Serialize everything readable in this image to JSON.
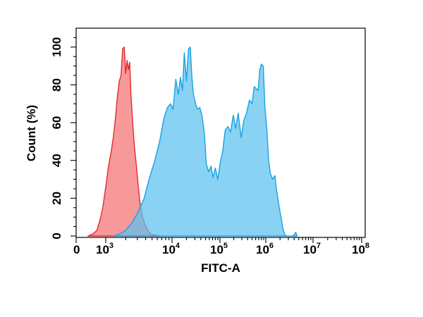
{
  "chart_data": {
    "type": "area",
    "title": "",
    "xlabel": "FITC-A",
    "ylabel": "Count (%)",
    "x_scale": "biexponential",
    "xlim": [
      0,
      100000000
    ],
    "ylim": [
      0,
      110
    ],
    "x_ticks": [
      {
        "value": 0,
        "base": "0",
        "exp": ""
      },
      {
        "value": 1000,
        "base": "10",
        "exp": "3"
      },
      {
        "value": 10000,
        "base": "10",
        "exp": "4"
      },
      {
        "value": 100000,
        "base": "10",
        "exp": "5"
      },
      {
        "value": 1000000,
        "base": "10",
        "exp": "6"
      },
      {
        "value": 10000000,
        "base": "10",
        "exp": "7"
      },
      {
        "value": 100000000,
        "base": "10",
        "exp": "8"
      }
    ],
    "y_ticks": [
      0,
      20,
      40,
      60,
      80,
      100
    ],
    "grid": false,
    "legend": "none",
    "series": [
      {
        "color": "#f47171",
        "stroke": "#e8282c",
        "x": [
          400,
          560,
          700,
          800,
          900,
          1000,
          1100,
          1200,
          1300,
          1400,
          1500,
          1600,
          1700,
          1800,
          1900,
          2000,
          2100,
          2200,
          2300,
          2400,
          2550,
          2700,
          2900,
          3100,
          3300,
          3600,
          3900,
          4300,
          4800,
          5500,
          6500
        ],
        "y": [
          0,
          1,
          3,
          8,
          15,
          26,
          37,
          44,
          52,
          62,
          74,
          82,
          85,
          99,
          100,
          86,
          93,
          88,
          92,
          75,
          60,
          48,
          37,
          26,
          17,
          10,
          6,
          3,
          1,
          0.5,
          0
        ]
      },
      {
        "color": "#5bc1ef",
        "stroke": "#1aa2e2",
        "x": [
          1300,
          1600,
          2000,
          2500,
          3000,
          3800,
          4500,
          5500,
          6500,
          7500,
          8500,
          9500,
          10500,
          12000,
          13500,
          15000,
          16500,
          18000,
          20000,
          22000,
          24000,
          26000,
          28000,
          31000,
          34000,
          38000,
          42000,
          47000,
          52000,
          58000,
          65000,
          72000,
          80000,
          90000,
          100000,
          115000,
          130000,
          150000,
          170000,
          195000,
          220000,
          250000,
          290000,
          330000,
          380000,
          440000,
          500000,
          560000,
          620000,
          680000,
          740000,
          800000,
          880000,
          960000,
          1050000,
          1150000,
          1250000,
          1400000,
          1550000,
          1700000,
          1900000,
          2100000,
          2300000,
          2500000,
          2700000,
          3000000,
          3400000,
          3800000,
          4300000,
          4600000
        ],
        "y": [
          0,
          1,
          3,
          7,
          12,
          20,
          30,
          40,
          50,
          62,
          68,
          70,
          67,
          83,
          75,
          84,
          77,
          97,
          82,
          99,
          100,
          84,
          75,
          70,
          67,
          68,
          64,
          55,
          38,
          34,
          37,
          31,
          36,
          30,
          38,
          45,
          56,
          58,
          55,
          64,
          57,
          65,
          52,
          61,
          65,
          72,
          70,
          79,
          78,
          77,
          88,
          91,
          90,
          68,
          57,
          40,
          33,
          30,
          32,
          24,
          16,
          10,
          4,
          1,
          0,
          0,
          0,
          0,
          2,
          0
        ]
      }
    ]
  }
}
